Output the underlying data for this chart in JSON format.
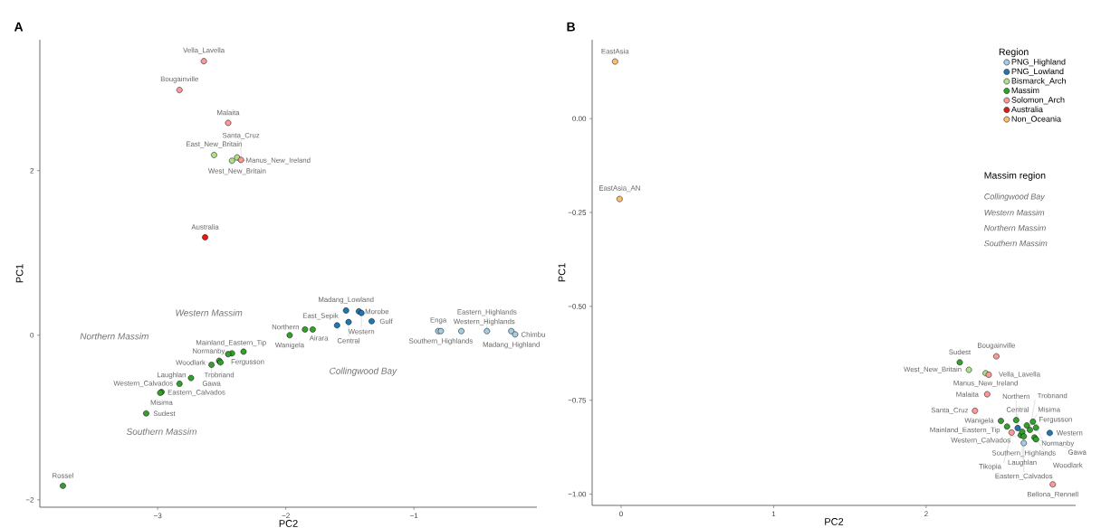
{
  "chart_data": [
    {
      "type": "scatter",
      "title": "A",
      "xlabel": "PC2",
      "ylabel": "PC1",
      "marker": "circle",
      "xlim": [
        -3.92,
        -0.04
      ],
      "ylim": [
        -2.09,
        3.59
      ],
      "xticks": [
        {
          "value": -3,
          "label": "−3"
        },
        {
          "value": -2,
          "label": "−2"
        },
        {
          "value": -1,
          "label": "−1"
        }
      ],
      "yticks": [
        {
          "value": -2,
          "label": "−2"
        },
        0,
        2
      ],
      "series": [
        {
          "color": "#a6cee3",
          "x": [
            -0.81,
            -0.79,
            -0.63,
            -0.43,
            -0.24,
            -0.21
          ],
          "values": [
            0.05,
            0.05,
            0.05,
            0.05,
            0.05,
            0.01
          ],
          "value_labels": [
            "Enga",
            "Southern_Highlands",
            "Western_Highlands",
            "Eastern_Highlands",
            "Madang_Highland",
            "Chimbu"
          ]
        },
        {
          "color": "#1f78b4",
          "x": [
            -1.53,
            -1.43,
            -1.41,
            -1.51,
            -1.6,
            -1.33
          ],
          "values": [
            0.3,
            0.29,
            0.27,
            0.16,
            0.12,
            0.17
          ],
          "value_labels": [
            "Madang_Lowland",
            "Morobe",
            "Western",
            "Central",
            "East_Sepik",
            "Gulf"
          ]
        },
        {
          "color": "#b2df8a",
          "x": [
            -2.56,
            -2.38,
            -2.42
          ],
          "values": [
            2.19,
            2.16,
            2.12
          ],
          "value_labels": [
            "East_New_Britain",
            "West_New_Britain",
            "Manus_New_Ireland"
          ]
        },
        {
          "color": "#33a02c",
          "x": [
            -1.97,
            -1.85,
            -1.79,
            -2.33,
            -2.42,
            -2.45,
            -2.52,
            -2.51,
            -2.58,
            -2.74,
            -2.83,
            -2.97,
            -2.98,
            -3.09,
            -3.74
          ],
          "values": [
            0.0,
            0.07,
            0.07,
            -0.2,
            -0.22,
            -0.23,
            -0.31,
            -0.33,
            -0.36,
            -0.52,
            -0.59,
            -0.69,
            -0.7,
            -0.95,
            -1.83
          ],
          "value_labels": [
            "Wanigela",
            "Northern",
            "Airara",
            "Mainland_Eastern_Tip",
            "Fergusson",
            "Normanby",
            "Trobriand",
            "Woodlark",
            "Gawa",
            "Laughlan",
            "Western_Calvados",
            "Misima",
            "Eastern_Calvados",
            "Sudest",
            "Rossel"
          ]
        },
        {
          "color": "#fb9a99",
          "x": [
            -2.64,
            -2.83,
            -2.45,
            -2.35
          ],
          "values": [
            3.33,
            2.98,
            2.58,
            2.13
          ],
          "value_labels": [
            "Vella_Lavella",
            "Bougainville",
            "Malaita",
            "Santa_Cruz"
          ]
        },
        {
          "color": "#e31a1c",
          "x": [
            -2.63
          ],
          "values": [
            1.19
          ],
          "value_labels": [
            "Australia"
          ]
        }
      ],
      "annotations": [
        "Western Massim",
        "Northern Massim",
        "Collingwood Bay",
        "Southern Massim"
      ]
    },
    {
      "type": "scatter",
      "title": "B",
      "xlabel": "PC2",
      "ylabel": "PC1",
      "marker": "circle",
      "xlim": [
        -0.19,
        2.98
      ],
      "ylim": [
        -1.03,
        0.21
      ],
      "xticks": [
        0,
        1,
        2
      ],
      "yticks": [
        {
          "value": 0,
          "label": "0.00"
        },
        {
          "value": -0.25,
          "label": "−0.25"
        },
        {
          "value": -0.5,
          "label": "−0.50"
        },
        {
          "value": -0.75,
          "label": "−0.75"
        },
        {
          "value": -1,
          "label": "−1.00"
        }
      ],
      "legend": "top right",
      "legend_title": "Region",
      "series": [
        {
          "name": "PNG_Highland",
          "color": "#a6cee3",
          "x": [
            2.64
          ],
          "values": [
            -0.864
          ],
          "value_labels": [
            "Southern_Highlands"
          ]
        },
        {
          "name": "PNG_Lowland",
          "color": "#1f78b4",
          "x": [
            2.6,
            2.81
          ],
          "values": [
            -0.824,
            -0.837
          ],
          "value_labels": [
            "Central",
            "Western"
          ]
        },
        {
          "name": "Bismarck_Arch",
          "color": "#b2df8a",
          "x": [
            2.28,
            2.39
          ],
          "values": [
            -0.669,
            -0.678
          ],
          "value_labels": [
            "West_New_Britain",
            "Manus_New_Ireland"
          ]
        },
        {
          "name": "Massim",
          "color": "#33a02c",
          "x": [
            2.22,
            2.49,
            2.53,
            2.59,
            2.62,
            2.63,
            2.64,
            2.66,
            2.7,
            2.72,
            2.68,
            2.71,
            2.72
          ],
          "values": [
            -0.649,
            -0.805,
            -0.82,
            -0.803,
            -0.843,
            -0.834,
            -0.846,
            -0.817,
            -0.807,
            -0.823,
            -0.829,
            -0.849,
            -0.854
          ],
          "value_labels": [
            "Sudest",
            "Wanigela",
            "Mainland_Eastern_Tip",
            "Northern",
            "Western_Calvados",
            "Laughlan",
            "Eastern_Calvados",
            "Fergusson",
            "Misima",
            "Normanby",
            "Trobriand",
            "Woodlark",
            "Gawa"
          ]
        },
        {
          "name": "Solomon_Arch",
          "color": "#fb9a99",
          "x": [
            2.46,
            2.41,
            2.4,
            2.32,
            2.56,
            2.83
          ],
          "values": [
            -0.633,
            -0.682,
            -0.734,
            -0.778,
            -0.836,
            -0.974
          ],
          "value_labels": [
            "Bougainville",
            "Vella_Lavella",
            "Malaita",
            "Santa_Cruz",
            "Tikopia",
            "Bellona_Rennell"
          ]
        },
        {
          "name": "Australia",
          "color": "#e31a1c"
        },
        {
          "name": "Non_Oceania",
          "color": "#fdbf6f",
          "x": [
            -0.04,
            -0.01
          ],
          "values": [
            0.152,
            -0.214
          ],
          "value_labels": [
            "EastAsia",
            "EastAsia_AN"
          ]
        }
      ],
      "annotations": [
        "Massim region",
        "Collingwood Bay",
        "Western Massim",
        "Northern Massim",
        "Southern Massim"
      ]
    }
  ]
}
